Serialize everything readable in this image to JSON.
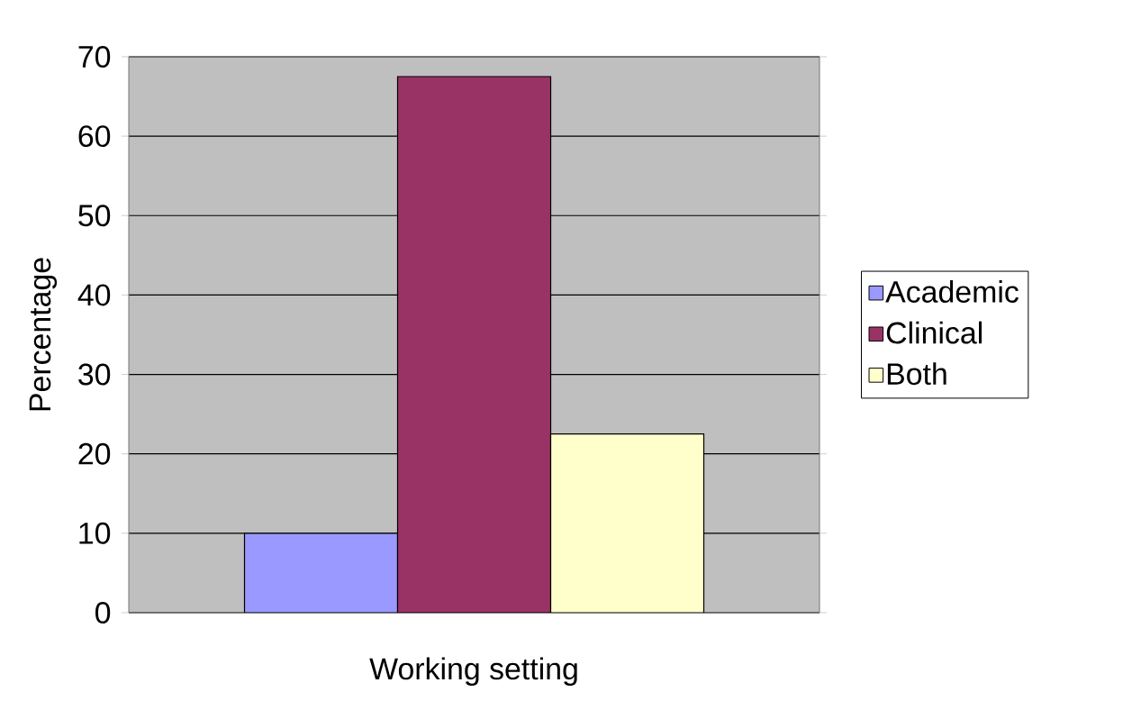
{
  "chart_data": {
    "type": "bar",
    "xlabel": "Working setting",
    "ylabel": "Percentage",
    "categories": [
      null
    ],
    "series": [
      {
        "name": "Academic",
        "color": "#9999ff",
        "values": [
          10
        ]
      },
      {
        "name": "Clinical",
        "color": "#993366",
        "values": [
          67.5
        ]
      },
      {
        "name": "Both",
        "color": "#ffffcc",
        "values": [
          22.5
        ]
      }
    ],
    "ylim": [
      0,
      70
    ],
    "yticks": [
      0,
      10,
      20,
      30,
      40,
      50,
      60,
      70
    ],
    "grid": "y",
    "legend": "right"
  }
}
